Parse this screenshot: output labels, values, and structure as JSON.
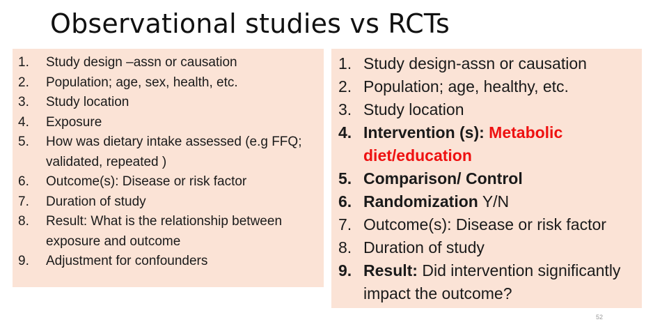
{
  "title": "Observational studies vs RCTs",
  "left_list": [
    {
      "num": "1.",
      "text": "Study design –assn or causation"
    },
    {
      "num": "2.",
      "text": "Population; age, sex, health,  etc."
    },
    {
      "num": "3.",
      "text": "Study location"
    },
    {
      "num": "4.",
      "text": "Exposure"
    },
    {
      "num": "5.",
      "text": "How was dietary intake assessed (e.g FFQ; validated, repeated )"
    },
    {
      "num": "6.",
      "text": "Outcome(s): Disease or risk factor"
    },
    {
      "num": "7.",
      "text": "Duration of study"
    },
    {
      "num": "8.",
      "text": "Result: What is the relationship between exposure and outcome"
    },
    {
      "num": "9.",
      "text": "Adjustment for confounders"
    }
  ],
  "right_list": [
    {
      "num": "1.",
      "text": "Study design-assn or causation"
    },
    {
      "num": "2.",
      "text": "Population; age, healthy,  etc."
    },
    {
      "num": "3.",
      "text": "Study location"
    },
    {
      "num": "4.",
      "bold": "Intervention (s):",
      "highlight": "Metabolic diet/education"
    },
    {
      "num": "5.",
      "bold": "Comparison/ Control"
    },
    {
      "num": "6.",
      "bold": "Randomization",
      "text": "Y/N"
    },
    {
      "num": "7.",
      "text": "Outcome(s): Disease or risk factor"
    },
    {
      "num": "8.",
      "text": "Duration of study"
    },
    {
      "num": "9.",
      "bold": "Result:",
      "text": "Did intervention significantly impact the outcome?"
    }
  ],
  "page_number": "52",
  "colors": {
    "box_bg": "#fbe3d6",
    "highlight": "#ee1111"
  }
}
